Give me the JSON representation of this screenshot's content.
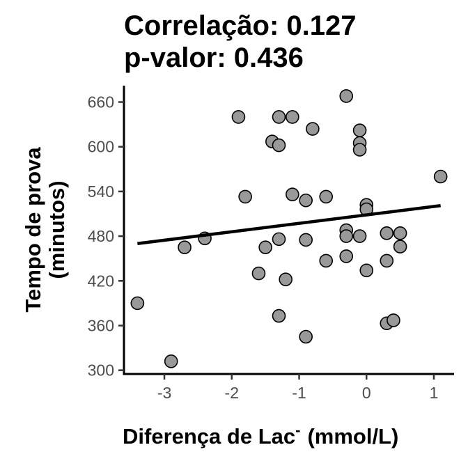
{
  "chart_data": {
    "type": "scatter",
    "title_lines": [
      "Correlação: 0.127",
      "p-valor: 0.436"
    ],
    "xlabel": "Diferença de Lac",
    "xlabel_superscript": "-",
    "xlabel_unit": "(mmol/L)",
    "ylabel_lines": [
      "Tempo de prova",
      "(minutos)"
    ],
    "xlim": [
      -3.6,
      1.3
    ],
    "ylim": [
      295,
      682
    ],
    "xticks": [
      -3,
      -2,
      -1,
      0,
      1
    ],
    "yticks": [
      300,
      360,
      420,
      480,
      540,
      600,
      660
    ],
    "xtick_labels": [
      "-3",
      "-2",
      "-1",
      "0",
      "1"
    ],
    "ytick_labels": [
      "300",
      "360",
      "420",
      "480",
      "540",
      "600",
      "660"
    ],
    "point_fill": "#999999",
    "point_stroke": "#000000",
    "line_color": "#000000",
    "grid": false,
    "legend": "none",
    "points": [
      {
        "x": -3.4,
        "y": 390
      },
      {
        "x": -2.9,
        "y": 312
      },
      {
        "x": -2.7,
        "y": 465
      },
      {
        "x": -2.4,
        "y": 477
      },
      {
        "x": -1.9,
        "y": 640
      },
      {
        "x": -1.8,
        "y": 533
      },
      {
        "x": -1.6,
        "y": 430
      },
      {
        "x": -1.5,
        "y": 465
      },
      {
        "x": -1.4,
        "y": 607
      },
      {
        "x": -1.3,
        "y": 640
      },
      {
        "x": -1.3,
        "y": 602
      },
      {
        "x": -1.3,
        "y": 476
      },
      {
        "x": -1.3,
        "y": 373
      },
      {
        "x": -1.2,
        "y": 422
      },
      {
        "x": -1.1,
        "y": 640
      },
      {
        "x": -1.1,
        "y": 536
      },
      {
        "x": -0.9,
        "y": 528
      },
      {
        "x": -0.9,
        "y": 475
      },
      {
        "x": -0.9,
        "y": 345
      },
      {
        "x": -0.8,
        "y": 624
      },
      {
        "x": -0.6,
        "y": 533
      },
      {
        "x": -0.6,
        "y": 447
      },
      {
        "x": -0.3,
        "y": 668
      },
      {
        "x": -0.3,
        "y": 488
      },
      {
        "x": -0.3,
        "y": 480
      },
      {
        "x": -0.3,
        "y": 453
      },
      {
        "x": -0.1,
        "y": 622
      },
      {
        "x": -0.1,
        "y": 605
      },
      {
        "x": -0.1,
        "y": 596
      },
      {
        "x": -0.1,
        "y": 480
      },
      {
        "x": 0.0,
        "y": 522
      },
      {
        "x": 0.0,
        "y": 516
      },
      {
        "x": 0.0,
        "y": 434
      },
      {
        "x": 0.3,
        "y": 484
      },
      {
        "x": 0.3,
        "y": 447
      },
      {
        "x": 0.3,
        "y": 363
      },
      {
        "x": 0.4,
        "y": 367
      },
      {
        "x": 0.5,
        "y": 484
      },
      {
        "x": 0.5,
        "y": 466
      },
      {
        "x": 1.1,
        "y": 560
      }
    ],
    "trend_line": {
      "x": [
        -3.4,
        1.1
      ],
      "y": [
        470,
        521
      ]
    }
  }
}
